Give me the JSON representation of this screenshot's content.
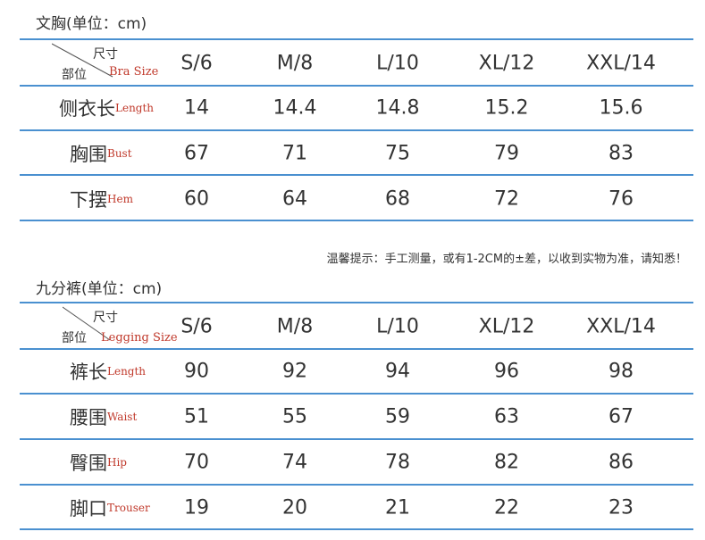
{
  "bra_table": {
    "title": "文胸(单位：cm)",
    "header_corner_top": "尺寸",
    "header_corner_bottom": "部位",
    "header_corner_en": "Bra Size",
    "sizes": [
      "S/6",
      "M/8",
      "L/10",
      "XL/12",
      "XXL/14"
    ],
    "rows": [
      {
        "label_zh": "侧衣长",
        "label_en": "Length",
        "values": [
          "14",
          "14.4",
          "14.8",
          "15.2",
          "15.6"
        ]
      },
      {
        "label_zh": "胸围",
        "label_en": "Bust",
        "values": [
          "67",
          "71",
          "75",
          "79",
          "83"
        ]
      },
      {
        "label_zh": "下摆",
        "label_en": "Hem",
        "values": [
          "60",
          "64",
          "68",
          "72",
          "76"
        ]
      }
    ]
  },
  "note": "温馨提示：手工测量，或有1-2CM的±差，以收到实物为准，请知悉！",
  "legging_table": {
    "title": "九分裤(单位：cm)",
    "header_corner_top": "尺寸",
    "header_corner_bottom": "部位",
    "header_corner_en": "Legging Size",
    "sizes": [
      "S/6",
      "M/8",
      "L/10",
      "XL/12",
      "XXL/14"
    ],
    "rows": [
      {
        "label_zh": "裤长",
        "label_en": "Length",
        "values": [
          "90",
          "92",
          "94",
          "96",
          "98"
        ]
      },
      {
        "label_zh": "腰围",
        "label_en": "Waist",
        "values": [
          "51",
          "55",
          "59",
          "63",
          "67"
        ]
      },
      {
        "label_zh": "臀围",
        "label_en": "Hip",
        "values": [
          "70",
          "74",
          "78",
          "82",
          "86"
        ]
      },
      {
        "label_zh": "脚口",
        "label_en": "Trouser",
        "values": [
          "19",
          "20",
          "21",
          "22",
          "23"
        ]
      }
    ]
  },
  "colors": {
    "rule": "#4a90d0",
    "english_label": "#c0392b"
  }
}
